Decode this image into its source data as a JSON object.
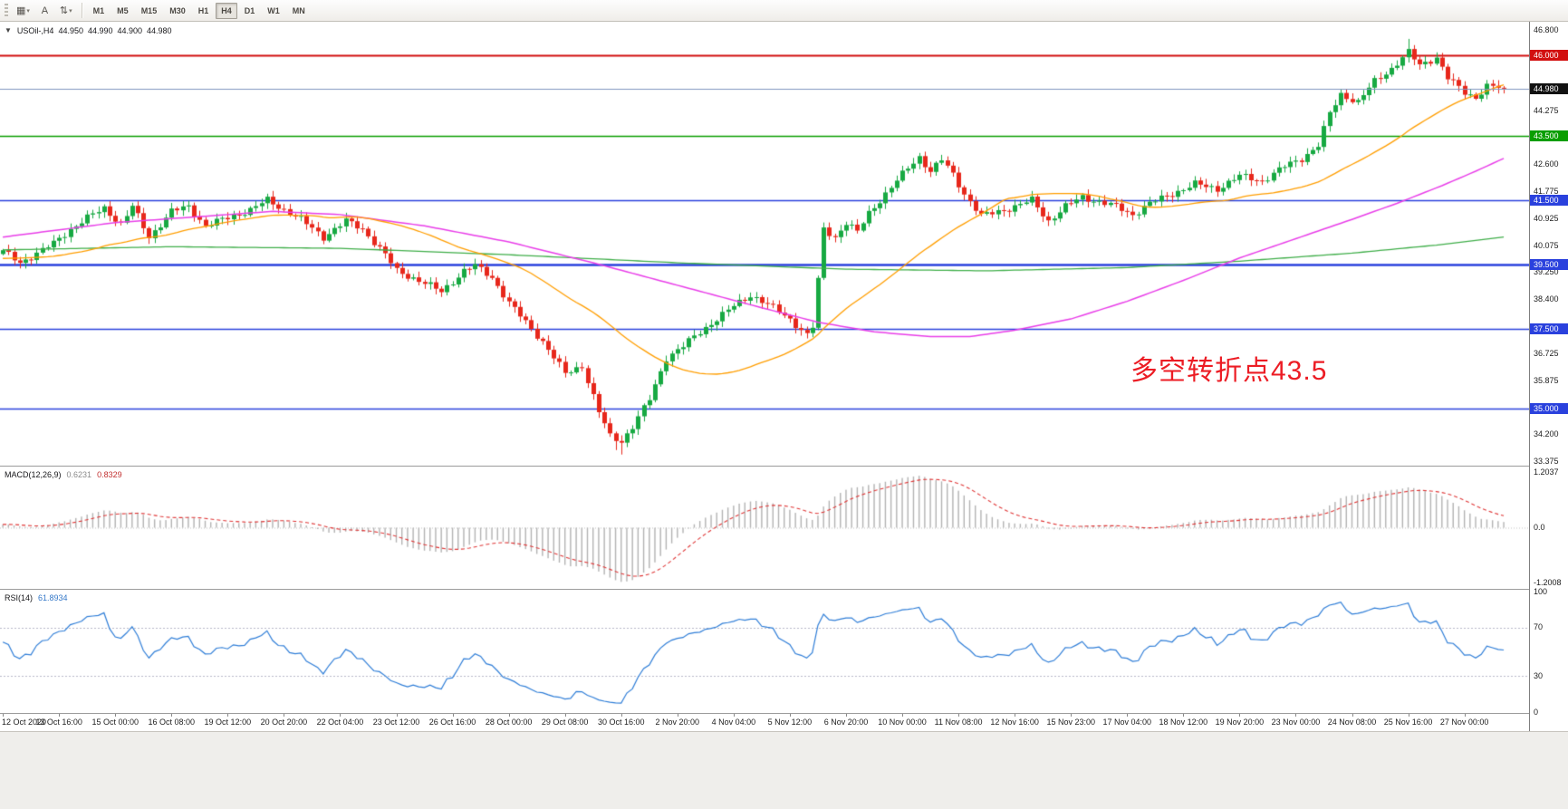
{
  "toolbar": {
    "icons": [
      {
        "name": "chart-templates-icon",
        "glyph": "▦",
        "caret": "▾"
      },
      {
        "name": "text-tool-icon",
        "glyph": "A",
        "caret": ""
      },
      {
        "name": "scale-settings-icon",
        "glyph": "⇅",
        "caret": "▾"
      }
    ],
    "timeframes": [
      {
        "label": "M1",
        "active": false
      },
      {
        "label": "M5",
        "active": false
      },
      {
        "label": "M15",
        "active": false
      },
      {
        "label": "M30",
        "active": false
      },
      {
        "label": "H1",
        "active": false
      },
      {
        "label": "H4",
        "active": true
      },
      {
        "label": "D1",
        "active": false
      },
      {
        "label": "W1",
        "active": false
      },
      {
        "label": "MN",
        "active": false
      }
    ]
  },
  "chart": {
    "info": {
      "dropdown_glyph": "▼",
      "title": "USOil-,H4",
      "open": "44.950",
      "high": "44.990",
      "low": "44.900",
      "close": "44.980"
    },
    "annotation": {
      "text": "多空转折点43.5",
      "color": "#ec1c24"
    },
    "colors": {
      "up": "#17a942",
      "down": "#e7271b",
      "ma_fast": "#ff9e00",
      "ma_mid": "#e93ee9",
      "ma_slow": "#3fae49",
      "macd_hist": "#b3b3b3",
      "macd_signal": "#e03636",
      "rsi_line": "#2f7ed8"
    },
    "y_axis": {
      "min": 33.375,
      "max": 46.8,
      "ticks": [
        {
          "price": 46.8,
          "label": "46.800"
        },
        {
          "price": 44.275,
          "label": "44.275"
        },
        {
          "price": 42.6,
          "label": "42.600"
        },
        {
          "price": 41.775,
          "label": "41.775"
        },
        {
          "price": 40.925,
          "label": "40.925"
        },
        {
          "price": 40.075,
          "label": "40.075"
        },
        {
          "price": 39.25,
          "label": "39.250"
        },
        {
          "price": 38.4,
          "label": "38.400"
        },
        {
          "price": 36.725,
          "label": "36.725"
        },
        {
          "price": 35.875,
          "label": "35.875"
        },
        {
          "price": 34.2,
          "label": "34.200"
        },
        {
          "price": 33.375,
          "label": "33.375"
        }
      ]
    },
    "levels": [
      {
        "price": 46.0,
        "label": "46.000",
        "color": "#d20f0f",
        "width": 2
      },
      {
        "price": 43.5,
        "label": "43.500",
        "color": "#0a9e00",
        "width": 1.5
      },
      {
        "price": 41.5,
        "label": "41.500",
        "color": "#2a41dd",
        "width": 1.6
      },
      {
        "price": 39.5,
        "label": "39.500",
        "color": "#2a41dd",
        "width": 2.6
      },
      {
        "price": 37.5,
        "label": "37.500",
        "color": "#2a41dd",
        "width": 1.6
      },
      {
        "price": 35.0,
        "label": "35.000",
        "color": "#2a41dd",
        "width": 1.6
      }
    ],
    "bid": {
      "price": 44.98,
      "label": "44.980",
      "line_color": "#8096c0",
      "tag_bg": "#121212"
    }
  },
  "macd_panel": {
    "name": "MACD(12,26,9)",
    "value_main": "0.6231",
    "value_signal": "0.8329",
    "scale": [
      {
        "v": 1.2037,
        "label": "1.2037"
      },
      {
        "v": 0,
        "label": "0.0"
      },
      {
        "v": -1.2008,
        "label": "-1.2008"
      }
    ]
  },
  "rsi_panel": {
    "name": "RSI(14)",
    "value": "61.8934",
    "scale": [
      {
        "v": 100,
        "label": "100"
      },
      {
        "v": 70,
        "label": "70"
      },
      {
        "v": 30,
        "label": "30"
      },
      {
        "v": 0,
        "label": "0"
      }
    ],
    "level_lines": [
      70,
      30
    ]
  },
  "chart_data": {
    "type": "candlestick",
    "symbol": "USOil-",
    "timeframe": "H4",
    "bar_count": 268,
    "ohlc_last": {
      "open": 44.95,
      "high": 44.99,
      "low": 44.9,
      "close": 44.98
    },
    "close_anchors": [
      [
        0,
        39.9
      ],
      [
        3,
        39.55
      ],
      [
        6,
        39.85
      ],
      [
        9,
        40.15
      ],
      [
        12,
        40.6
      ],
      [
        15,
        40.95
      ],
      [
        18,
        41.25
      ],
      [
        21,
        40.75
      ],
      [
        23,
        41.3
      ],
      [
        26,
        40.35
      ],
      [
        30,
        41.15
      ],
      [
        33,
        41.3
      ],
      [
        36,
        40.7
      ],
      [
        40,
        40.95
      ],
      [
        44,
        41.2
      ],
      [
        47,
        41.5
      ],
      [
        49,
        41.3
      ],
      [
        53,
        40.9
      ],
      [
        57,
        40.35
      ],
      [
        61,
        40.85
      ],
      [
        64,
        40.6
      ],
      [
        68,
        39.8
      ],
      [
        70,
        39.3
      ],
      [
        74,
        39.0
      ],
      [
        78,
        38.65
      ],
      [
        82,
        39.3
      ],
      [
        84,
        39.45
      ],
      [
        87,
        39.1
      ],
      [
        90,
        38.3
      ],
      [
        93,
        37.7
      ],
      [
        96,
        37.1
      ],
      [
        100,
        36.1
      ],
      [
        103,
        36.35
      ],
      [
        106,
        34.9
      ],
      [
        108,
        34.15
      ],
      [
        110,
        34.0
      ],
      [
        112,
        34.45
      ],
      [
        115,
        35.3
      ],
      [
        118,
        36.6
      ],
      [
        121,
        36.95
      ],
      [
        124,
        37.4
      ],
      [
        127,
        37.8
      ],
      [
        130,
        38.2
      ],
      [
        133,
        38.55
      ],
      [
        136,
        38.25
      ],
      [
        140,
        37.8
      ],
      [
        143,
        37.3
      ],
      [
        144,
        37.55
      ],
      [
        145,
        39.0
      ],
      [
        146,
        40.6
      ],
      [
        148,
        40.35
      ],
      [
        150,
        40.8
      ],
      [
        152,
        40.5
      ],
      [
        154,
        41.1
      ],
      [
        156,
        41.5
      ],
      [
        158,
        41.9
      ],
      [
        161,
        42.5
      ],
      [
        163,
        42.85
      ],
      [
        165,
        42.4
      ],
      [
        167,
        42.75
      ],
      [
        169,
        42.3
      ],
      [
        171,
        41.7
      ],
      [
        174,
        41.0
      ],
      [
        177,
        41.15
      ],
      [
        180,
        41.3
      ],
      [
        183,
        41.5
      ],
      [
        186,
        40.85
      ],
      [
        189,
        41.3
      ],
      [
        192,
        41.6
      ],
      [
        195,
        41.45
      ],
      [
        198,
        41.3
      ],
      [
        201,
        41.05
      ],
      [
        204,
        41.4
      ],
      [
        208,
        41.7
      ],
      [
        212,
        42.0
      ],
      [
        216,
        41.85
      ],
      [
        220,
        42.25
      ],
      [
        224,
        42.1
      ],
      [
        228,
        42.55
      ],
      [
        231,
        42.8
      ],
      [
        234,
        43.2
      ],
      [
        236,
        44.2
      ],
      [
        238,
        44.8
      ],
      [
        241,
        44.55
      ],
      [
        244,
        45.2
      ],
      [
        247,
        45.6
      ],
      [
        250,
        46.1
      ],
      [
        252,
        45.7
      ],
      [
        255,
        45.95
      ],
      [
        257,
        45.3
      ],
      [
        260,
        44.85
      ],
      [
        262,
        44.7
      ],
      [
        264,
        45.05
      ],
      [
        267,
        44.98
      ]
    ],
    "wick_overrides": {
      "lows": {
        "110": 33.58,
        "109": 33.72
      },
      "highs": {
        "250": 46.52
      }
    },
    "sma_fast_period": 34,
    "magenta_ma_anchors": [
      [
        0,
        40.35
      ],
      [
        20,
        40.8
      ],
      [
        40,
        41.05
      ],
      [
        48,
        41.15
      ],
      [
        60,
        41.05
      ],
      [
        75,
        40.7
      ],
      [
        90,
        40.2
      ],
      [
        105,
        39.55
      ],
      [
        120,
        38.85
      ],
      [
        135,
        38.15
      ],
      [
        145,
        37.7
      ],
      [
        155,
        37.4
      ],
      [
        165,
        37.25
      ],
      [
        172,
        37.25
      ],
      [
        180,
        37.45
      ],
      [
        190,
        37.8
      ],
      [
        200,
        38.35
      ],
      [
        210,
        39.0
      ],
      [
        220,
        39.7
      ],
      [
        230,
        40.3
      ],
      [
        240,
        40.9
      ],
      [
        248,
        41.4
      ],
      [
        256,
        41.95
      ],
      [
        262,
        42.4
      ],
      [
        267,
        42.8
      ]
    ],
    "green_ma_anchors": [
      [
        0,
        39.95
      ],
      [
        30,
        40.05
      ],
      [
        60,
        40.0
      ],
      [
        90,
        39.8
      ],
      [
        120,
        39.55
      ],
      [
        150,
        39.35
      ],
      [
        175,
        39.3
      ],
      [
        200,
        39.4
      ],
      [
        220,
        39.6
      ],
      [
        240,
        39.85
      ],
      [
        255,
        40.1
      ],
      [
        267,
        40.35
      ]
    ],
    "x_label_interval": 10,
    "x_labels": [
      "12 Oct 2020",
      "13 Oct 16:00",
      "15 Oct 00:00",
      "16 Oct 08:00",
      "19 Oct 12:00",
      "20 Oct 20:00",
      "22 Oct 04:00",
      "23 Oct 12:00",
      "26 Oct 16:00",
      "28 Oct 00:00",
      "29 Oct 08:00",
      "30 Oct 16:00",
      "2 Nov 20:00",
      "4 Nov 04:00",
      "5 Nov 12:00",
      "6 Nov 20:00",
      "10 Nov 00:00",
      "11 Nov 08:00",
      "12 Nov 16:00",
      "15 Nov 23:00",
      "17 Nov 04:00",
      "18 Nov 12:00",
      "19 Nov 20:00",
      "23 Nov 00:00",
      "24 Nov 08:00",
      "25 Nov 16:00",
      "27 Nov 00:00"
    ],
    "macd": {
      "fast": 12,
      "slow": 26,
      "signal": 9,
      "display_max": 1.2037,
      "display_min": -1.2008
    },
    "rsi": {
      "period": 14
    }
  }
}
